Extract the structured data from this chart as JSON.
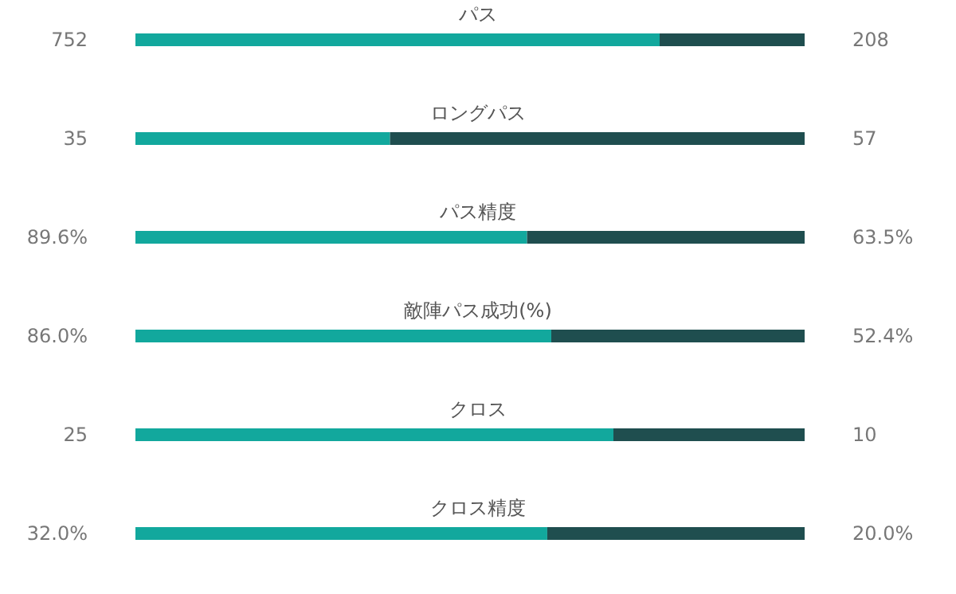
{
  "chart_data": [
    {
      "type": "bar",
      "orientation": "horizontal",
      "stacked": true,
      "title": "パス",
      "categories": [
        null
      ],
      "series": [
        {
          "color": "#12a89d",
          "values": [
            752
          ],
          "value_labels": [
            "752"
          ]
        },
        {
          "color": "#1f4e4f",
          "values": [
            208
          ],
          "value_labels": [
            "208"
          ]
        }
      ]
    },
    {
      "type": "bar",
      "orientation": "horizontal",
      "stacked": true,
      "title": "ロングパス",
      "categories": [
        null
      ],
      "series": [
        {
          "color": "#12a89d",
          "values": [
            35
          ],
          "value_labels": [
            "35"
          ]
        },
        {
          "color": "#1f4e4f",
          "values": [
            57
          ],
          "value_labels": [
            "57"
          ]
        }
      ]
    },
    {
      "type": "bar",
      "orientation": "horizontal",
      "stacked": true,
      "title": "パス精度",
      "categories": [
        null
      ],
      "series": [
        {
          "color": "#12a89d",
          "values": [
            89.6
          ],
          "value_labels": [
            "89.6%"
          ]
        },
        {
          "color": "#1f4e4f",
          "values": [
            63.5
          ],
          "value_labels": [
            "63.5%"
          ]
        }
      ]
    },
    {
      "type": "bar",
      "orientation": "horizontal",
      "stacked": true,
      "title": "敵陣パス成功(%)",
      "categories": [
        null
      ],
      "series": [
        {
          "color": "#12a89d",
          "values": [
            86.0
          ],
          "value_labels": [
            "86.0%"
          ]
        },
        {
          "color": "#1f4e4f",
          "values": [
            52.4
          ],
          "value_labels": [
            "52.4%"
          ]
        }
      ]
    },
    {
      "type": "bar",
      "orientation": "horizontal",
      "stacked": true,
      "title": "クロス",
      "categories": [
        null
      ],
      "series": [
        {
          "color": "#12a89d",
          "values": [
            25
          ],
          "value_labels": [
            "25"
          ]
        },
        {
          "color": "#1f4e4f",
          "values": [
            10
          ],
          "value_labels": [
            "10"
          ]
        }
      ]
    },
    {
      "type": "bar",
      "orientation": "horizontal",
      "stacked": true,
      "title": "クロス精度",
      "categories": [
        null
      ],
      "series": [
        {
          "color": "#12a89d",
          "values": [
            32.0
          ],
          "value_labels": [
            "32.0%"
          ]
        },
        {
          "color": "#1f4e4f",
          "values": [
            20.0
          ],
          "value_labels": [
            "20.0%"
          ]
        }
      ]
    }
  ]
}
